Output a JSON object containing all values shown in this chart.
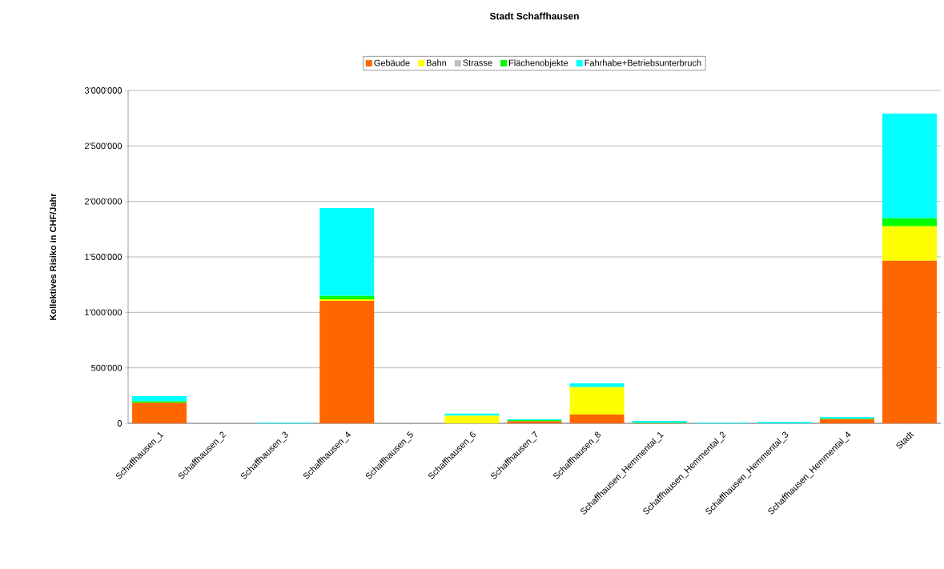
{
  "chart_data": {
    "type": "bar",
    "title": "Stadt Schaffhausen",
    "ylabel": "Kollektives Risiko in CHF/Jahr",
    "stacked": true,
    "categories": [
      "Schaffhausen_1",
      "Schaffhausen_2",
      "Schaffhausen_3",
      "Schaffhausen_4",
      "Schaffhausen_5",
      "Schaffhausen_6",
      "Schaffhausen_7",
      "Schaffhausen_8",
      "Schaffhausen_Hemmental_1",
      "Schaffhausen_Hemmental_2",
      "Schaffhausen_Hemmental_3",
      "Schaffhausen_Hemmental_4",
      "Stadt"
    ],
    "series": [
      {
        "name": "Gebäude",
        "color": "#ff6600",
        "values": [
          185000,
          0,
          null,
          1103000,
          0,
          0,
          18000,
          80000,
          2000,
          0,
          null,
          38000,
          1465000
        ]
      },
      {
        "name": "Bahn",
        "color": "#ffff00",
        "values": [
          0,
          0,
          0,
          15000,
          0,
          68000,
          0,
          247000,
          0,
          0,
          0,
          0,
          311000
        ]
      },
      {
        "name": "Strasse",
        "color": "#c0c0c0",
        "values": [
          0,
          0,
          0,
          0,
          0,
          0,
          0,
          0,
          0,
          0,
          0,
          0,
          null
        ]
      },
      {
        "name": "Flächenobjekte",
        "color": "#00ff00",
        "values": [
          13000,
          0,
          0,
          31000,
          0,
          0,
          11000,
          0,
          6000,
          0,
          0,
          5000,
          72000
        ]
      },
      {
        "name": "Fahrhabe+Betriebsunterbruch",
        "color": "#00ffff",
        "values": [
          47000,
          0,
          8000,
          791000,
          0,
          20000,
          7000,
          34000,
          14000,
          7000,
          12000,
          15000,
          945000
        ]
      }
    ],
    "ylim": [
      0,
      3000000
    ],
    "yticks": [
      0,
      {
        "value": 500000,
        "label": "500'000"
      },
      {
        "value": 1000000,
        "label": "1'000'000"
      },
      {
        "value": 1500000,
        "label": "1'500'000"
      },
      {
        "value": 2000000,
        "label": "2'000'000"
      },
      {
        "value": 2500000,
        "label": "2'500'000"
      },
      {
        "value": 3000000,
        "label": "3'000'000"
      }
    ],
    "grid": "y",
    "legend": "top"
  }
}
